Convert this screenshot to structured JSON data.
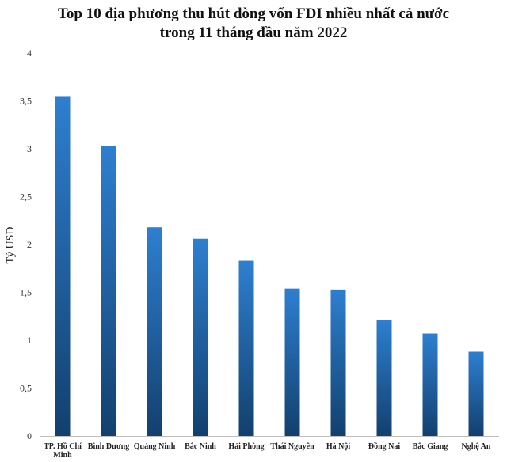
{
  "chart_data": {
    "type": "bar",
    "title_lines": [
      "Top 10 địa phương thu hút dòng vốn FDI nhiều nhất cả nước",
      "trong 11 tháng đầu năm 2022"
    ],
    "ylabel": "Tỷ USD",
    "xlabel": "",
    "ylim": [
      0,
      4
    ],
    "yticks": [
      "0",
      "0,5",
      "1",
      "1,5",
      "2",
      "2,5",
      "3",
      "3,5",
      "4"
    ],
    "categories": [
      [
        "TP. Hồ Chí",
        "Minh"
      ],
      [
        "Bình Dương"
      ],
      [
        "Quảng Ninh"
      ],
      [
        "Bắc Ninh"
      ],
      [
        "Hải Phòng"
      ],
      [
        "Thái Nguyên"
      ],
      [
        "Hà Nội"
      ],
      [
        "Đồng Nai"
      ],
      [
        "Bắc Giang"
      ],
      [
        "Nghệ An"
      ]
    ],
    "values": [
      3.55,
      3.03,
      2.18,
      2.06,
      1.83,
      1.54,
      1.53,
      1.21,
      1.07,
      0.88
    ],
    "grid": false,
    "legend": "none",
    "bar_color_top": "#2e7fd0",
    "bar_color_bottom": "#12406e"
  }
}
